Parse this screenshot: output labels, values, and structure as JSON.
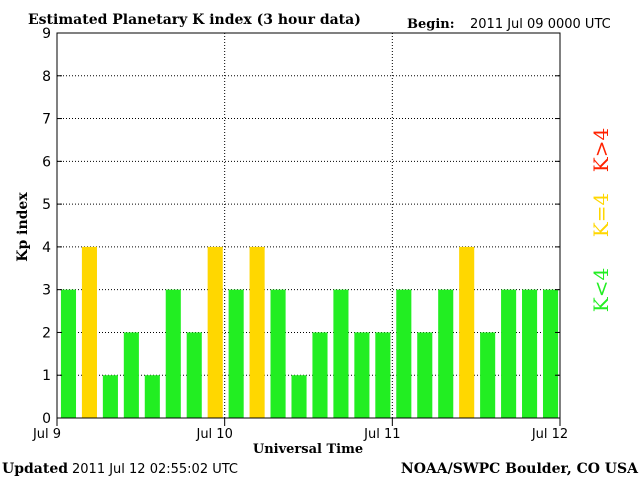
{
  "header": {
    "title": "Estimated Planetary K index (3 hour data)",
    "begin_label": "Begin:",
    "begin_value": "2011 Jul 09 0000 UTC"
  },
  "footer": {
    "updated_label": "Updated",
    "updated_value": "2011 Jul 12 02:55:02 UTC",
    "source": "NOAA/SWPC Boulder, CO USA"
  },
  "legend": {
    "position": "right",
    "items": [
      {
        "label": "K<4",
        "color": "#22ee22"
      },
      {
        "label": "K=4",
        "color": "#ffd700"
      },
      {
        "label": "K>4",
        "color": "#ff2200"
      }
    ]
  },
  "chart_data": {
    "type": "bar",
    "title": "Estimated Planetary K index (3 hour data)",
    "xlabel": "Universal Time",
    "ylabel": "Kp index",
    "ylim": [
      0,
      9
    ],
    "yticks": [
      0,
      1,
      2,
      3,
      4,
      5,
      6,
      7,
      8,
      9
    ],
    "xticks": [
      "Jul 9",
      "Jul 10",
      "Jul 11",
      "Jul 12"
    ],
    "grid": true,
    "interval_hours": 3,
    "values": [
      3,
      4,
      1,
      2,
      1,
      3,
      2,
      4,
      3,
      4,
      3,
      1,
      2,
      3,
      2,
      2,
      3,
      2,
      3,
      4,
      2,
      3,
      3,
      3
    ],
    "colors": {
      "below4": "#22ee22",
      "equal4": "#ffd700",
      "above4": "#ff2200"
    }
  }
}
